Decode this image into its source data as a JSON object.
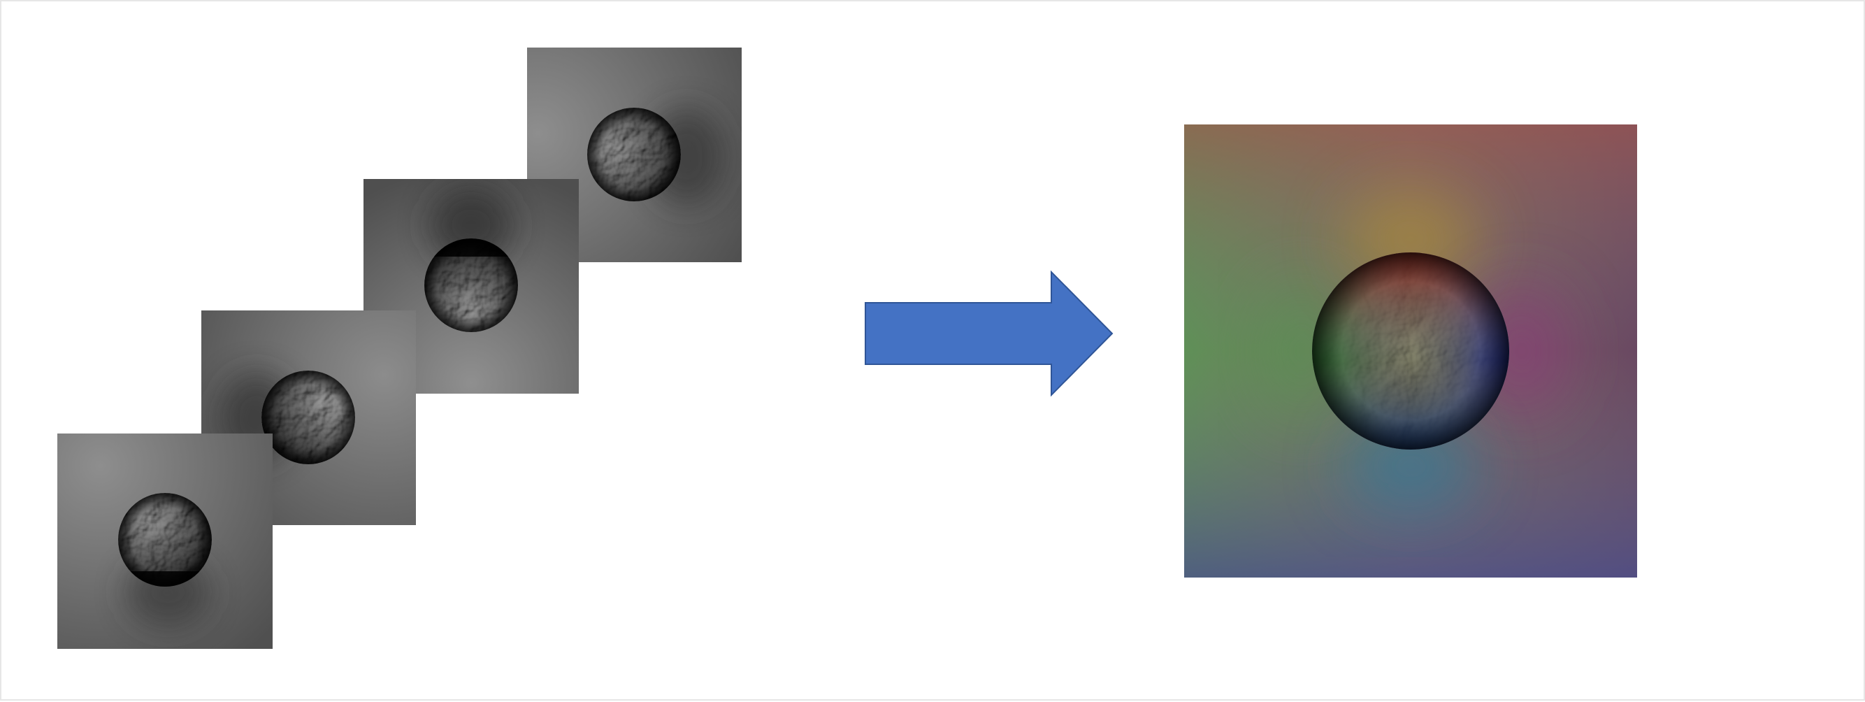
{
  "figure": {
    "background": "#ffffff",
    "frame_color": "#e6e6e6",
    "input_images": [
      {
        "id": "input-image-1",
        "shading": "grayscale",
        "light_direction": "top-left",
        "shadow_direction": "bottom"
      },
      {
        "id": "input-image-2",
        "shading": "grayscale",
        "light_direction": "top-right",
        "shadow_direction": "left"
      },
      {
        "id": "input-image-3",
        "shading": "grayscale",
        "light_direction": "bottom",
        "shadow_direction": "top"
      },
      {
        "id": "input-image-4",
        "shading": "grayscale",
        "light_direction": "left",
        "shadow_direction": "right"
      }
    ],
    "arrow": {
      "icon": "right-arrow-icon",
      "fill": "#4472c4",
      "stroke": "#2f5597"
    },
    "output_image": {
      "id": "normal-map-output",
      "shading": "color",
      "corner_colors": {
        "top_left": "#7f7f55",
        "top_right": "#8a4e50",
        "bottom_left": "#3f7a78",
        "bottom_right": "#53497a",
        "left": "#5f8f55",
        "top": "#a15a55",
        "right": "#6a4460",
        "bottom": "#4a5a8a"
      }
    }
  }
}
